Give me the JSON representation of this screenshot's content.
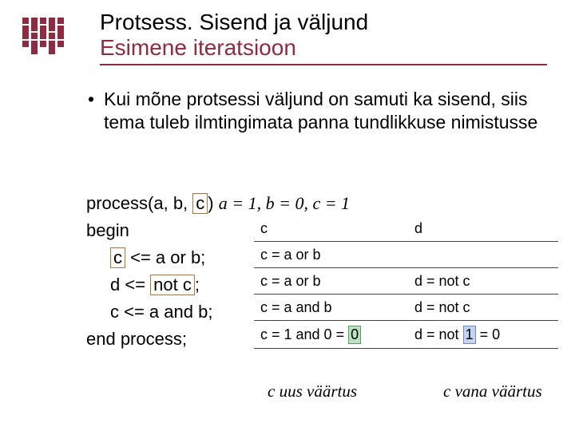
{
  "logo": {
    "color": "#912a3f"
  },
  "titles": {
    "line1": "Protsess. Sisend ja väljund",
    "line2": "Esimene iteratsioon"
  },
  "bullet_text": "Kui mõne protsessi väljund on samuti ka sisend, siis tema tuleb ilmtingimata panna tundlikkuse nimistusse",
  "code": {
    "l1_pre": "process(a, b,",
    "l1_box": "c",
    "l1_post": ")",
    "l1_init": " a = 1, b = 0, c = 1",
    "l2": "begin",
    "l3_box": "c",
    "l3_rest": " <= a or b;",
    "l4_pre": "d <= ",
    "l4_box": "not c",
    "l4_post": ";",
    "l5": "c <= a and b;",
    "l6": "end process;"
  },
  "table": {
    "head_c": "c",
    "head_d": "d",
    "r1_c": "c = a or b",
    "r1_d": "",
    "r2_c": "c = a or b",
    "r2_d": "d = not c",
    "r3_c": "c = a and b",
    "r3_d": "d = not c",
    "r4_c_pre": "c = 1 and 0 = ",
    "r4_c_hl": "0",
    "r4_d_pre": "d = not ",
    "r4_d_hl": "1",
    "r4_d_post": " = 0"
  },
  "captions": {
    "new": "c uus väärtus",
    "old": "c vana väärtus"
  }
}
